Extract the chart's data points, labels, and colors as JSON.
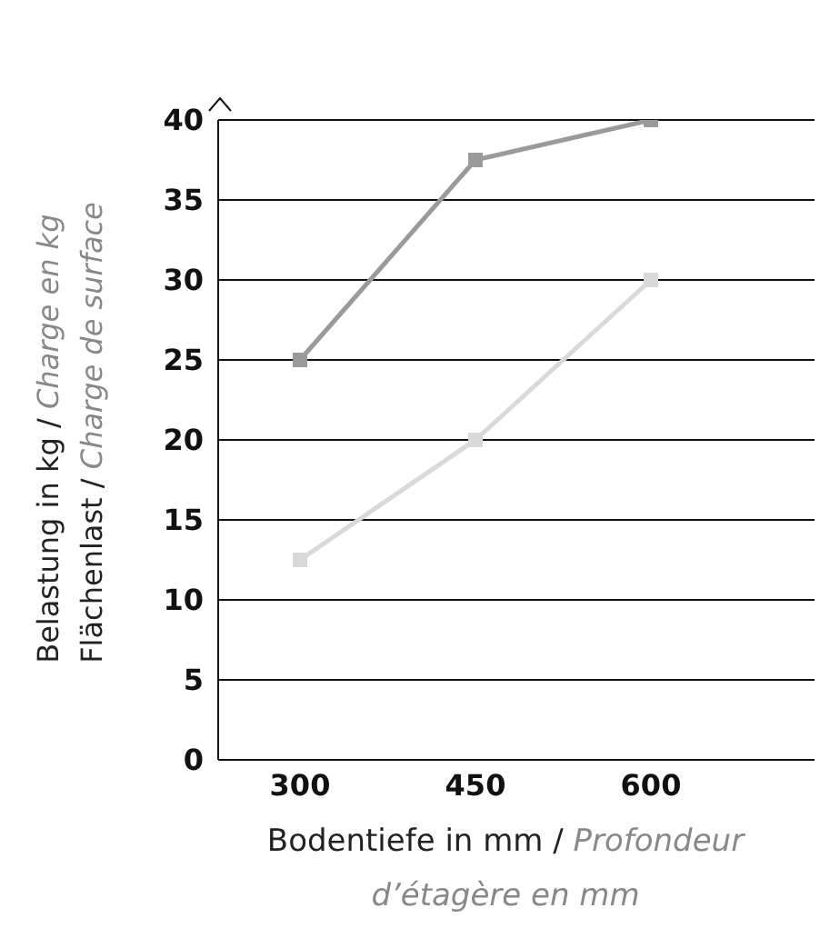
{
  "chart_data": {
    "type": "line",
    "xlabel": "Bodentiefe in mm / Profondeur d’étagère en mm",
    "ylabel": "Belastung in kg / Charge en kg\nFlächenlast / Charge de surface",
    "categories": [
      "300",
      "450",
      "600"
    ],
    "series": [
      {
        "color": "#9a9a9a",
        "values": [
          25,
          37.5,
          40
        ]
      },
      {
        "color": "#d9d9d9",
        "values": [
          12.5,
          20,
          30
        ]
      }
    ],
    "ylim": [
      0,
      40
    ],
    "yticks": [
      0,
      5,
      10,
      15,
      20,
      25,
      30,
      35,
      40
    ],
    "grid": "y",
    "marker": "square",
    "legend": false
  }
}
